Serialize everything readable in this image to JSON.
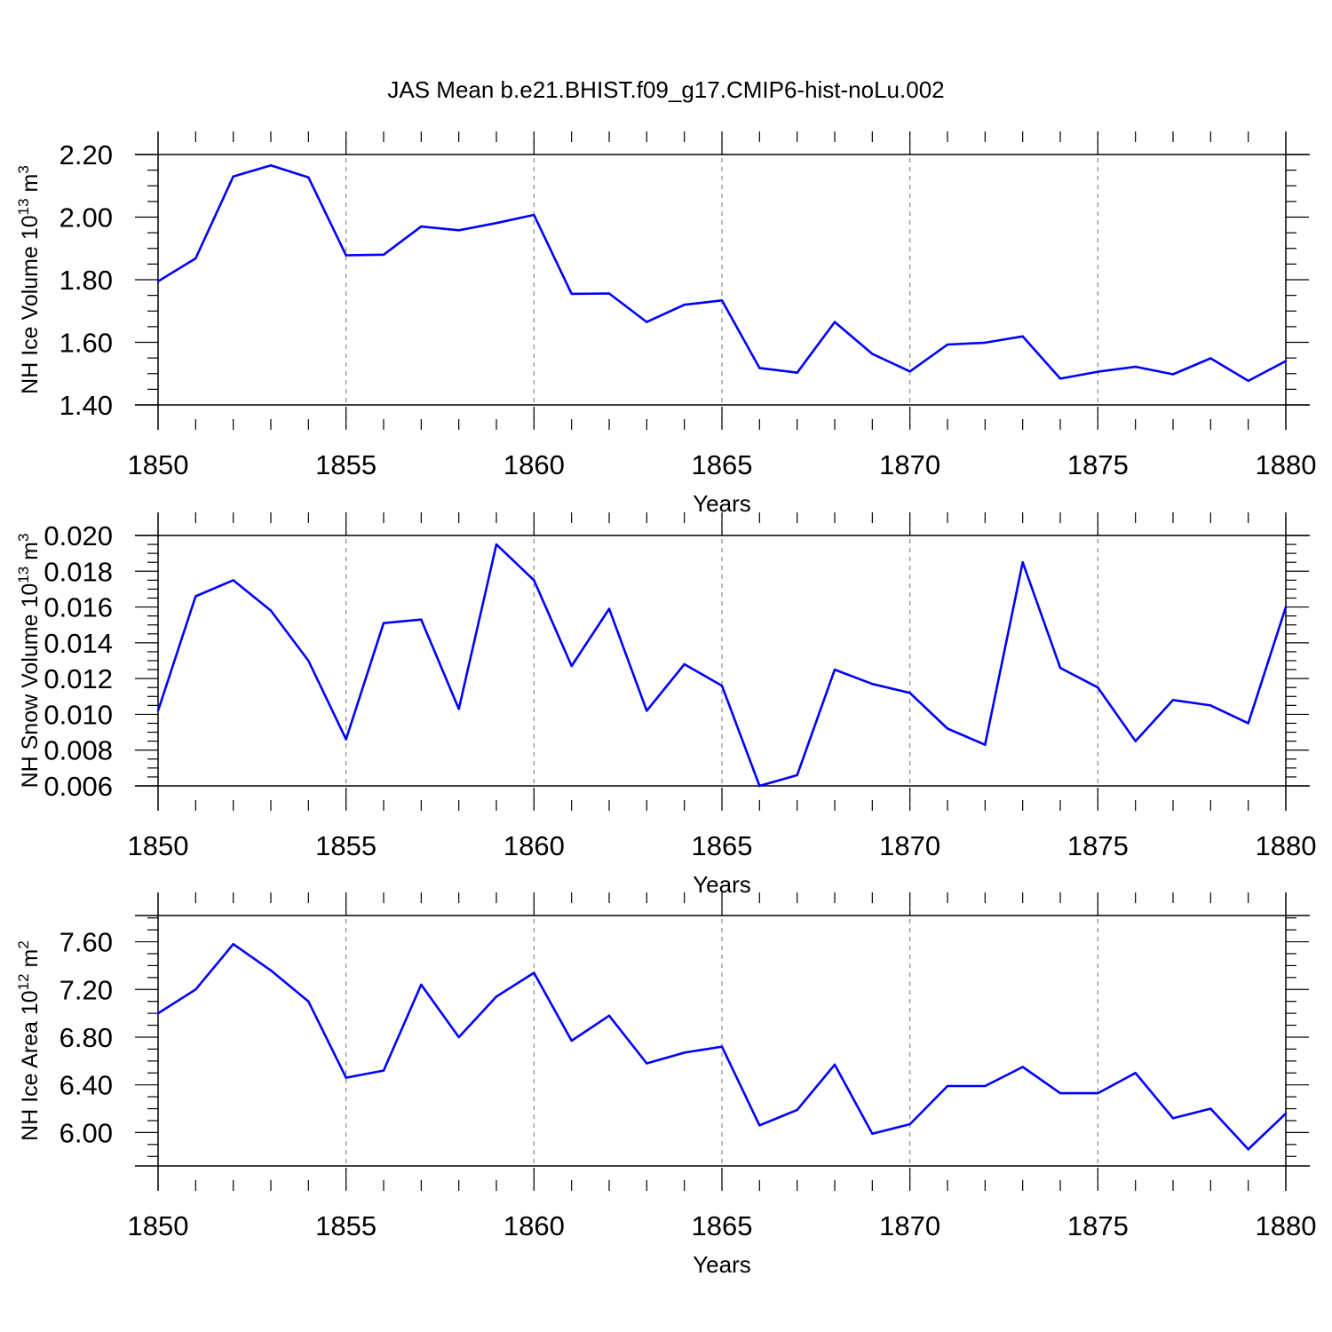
{
  "title": "JAS Mean b.e21.BHIST.f09_g17.CMIP6-hist-noLu.002",
  "colors": {
    "line": "#0000ff",
    "axis": "#000000",
    "grid": "#888888",
    "background": "#ffffff"
  },
  "chart_data": [
    {
      "type": "line",
      "title": "JAS Mean b.e21.BHIST.f09_g17.CMIP6-hist-noLu.002",
      "xlabel": "Years",
      "ylabel_main": "NH Ice Volume 10",
      "ylabel_exp": "13",
      "ylabel_unit": " m",
      "ylabel_unit_exp": "3",
      "xlim": [
        1850,
        1880
      ],
      "ylim": [
        1.4,
        2.2
      ],
      "xticks": [
        "1850",
        "1855",
        "1860",
        "1865",
        "1870",
        "1875",
        "1880"
      ],
      "yticks": [
        "1.40",
        "1.60",
        "1.80",
        "2.00",
        "2.20"
      ],
      "x": [
        1850,
        1851,
        1852,
        1853,
        1854,
        1855,
        1856,
        1857,
        1858,
        1859,
        1860,
        1861,
        1862,
        1863,
        1864,
        1865,
        1866,
        1867,
        1868,
        1869,
        1870,
        1871,
        1872,
        1873,
        1874,
        1875,
        1876,
        1877,
        1878,
        1879,
        1880
      ],
      "values": [
        1.795,
        1.868,
        2.13,
        2.165,
        2.127,
        1.878,
        1.88,
        1.97,
        1.958,
        1.981,
        2.007,
        1.755,
        1.756,
        1.665,
        1.72,
        1.734,
        1.518,
        1.503,
        1.665,
        1.563,
        1.507,
        1.593,
        1.599,
        1.619,
        1.484,
        1.506,
        1.522,
        1.498,
        1.549,
        1.477,
        1.54
      ],
      "grid": "vertical dashed"
    },
    {
      "type": "line",
      "xlabel": "Years",
      "ylabel_main": "NH Snow Volume 10",
      "ylabel_exp": "13",
      "ylabel_unit": " m",
      "ylabel_unit_exp": "3",
      "xlim": [
        1850,
        1880
      ],
      "ylim": [
        0.006,
        0.02
      ],
      "xticks": [
        "1850",
        "1855",
        "1860",
        "1865",
        "1870",
        "1875",
        "1880"
      ],
      "yticks": [
        "0.006",
        "0.008",
        "0.010",
        "0.012",
        "0.014",
        "0.016",
        "0.018",
        "0.020"
      ],
      "x": [
        1850,
        1851,
        1852,
        1853,
        1854,
        1855,
        1856,
        1857,
        1858,
        1859,
        1860,
        1861,
        1862,
        1863,
        1864,
        1865,
        1866,
        1867,
        1868,
        1869,
        1870,
        1871,
        1872,
        1873,
        1874,
        1875,
        1876,
        1877,
        1878,
        1879,
        1880
      ],
      "values": [
        0.0102,
        0.0166,
        0.0175,
        0.0158,
        0.013,
        0.0086,
        0.0151,
        0.0153,
        0.0103,
        0.0195,
        0.0175,
        0.0127,
        0.0159,
        0.0102,
        0.0128,
        0.0116,
        0.006,
        0.0066,
        0.0125,
        0.0117,
        0.0112,
        0.0092,
        0.0083,
        0.0185,
        0.0126,
        0.0115,
        0.0085,
        0.0108,
        0.0105,
        0.0095,
        0.016
      ],
      "grid": "vertical dashed"
    },
    {
      "type": "line",
      "xlabel": "Years",
      "ylabel_main": "NH Ice Area 10",
      "ylabel_exp": "12",
      "ylabel_unit": " m",
      "ylabel_unit_exp": "2",
      "xlim": [
        1850,
        1880
      ],
      "ylim": [
        5.72,
        7.82
      ],
      "xticks": [
        "1850",
        "1855",
        "1860",
        "1865",
        "1870",
        "1875",
        "1880"
      ],
      "yticks": [
        "6.00",
        "6.40",
        "6.80",
        "7.20",
        "7.60"
      ],
      "x": [
        1850,
        1851,
        1852,
        1853,
        1854,
        1855,
        1856,
        1857,
        1858,
        1859,
        1860,
        1861,
        1862,
        1863,
        1864,
        1865,
        1866,
        1867,
        1868,
        1869,
        1870,
        1871,
        1872,
        1873,
        1874,
        1875,
        1876,
        1877,
        1878,
        1879,
        1880
      ],
      "values": [
        7.0,
        7.2,
        7.58,
        7.36,
        7.1,
        6.46,
        6.52,
        7.24,
        6.8,
        7.14,
        7.34,
        6.77,
        6.98,
        6.58,
        6.67,
        6.72,
        6.06,
        6.19,
        6.57,
        5.99,
        6.07,
        6.39,
        6.39,
        6.55,
        6.33,
        6.33,
        6.5,
        6.12,
        6.2,
        5.86,
        6.16
      ],
      "grid": "vertical dashed"
    }
  ]
}
